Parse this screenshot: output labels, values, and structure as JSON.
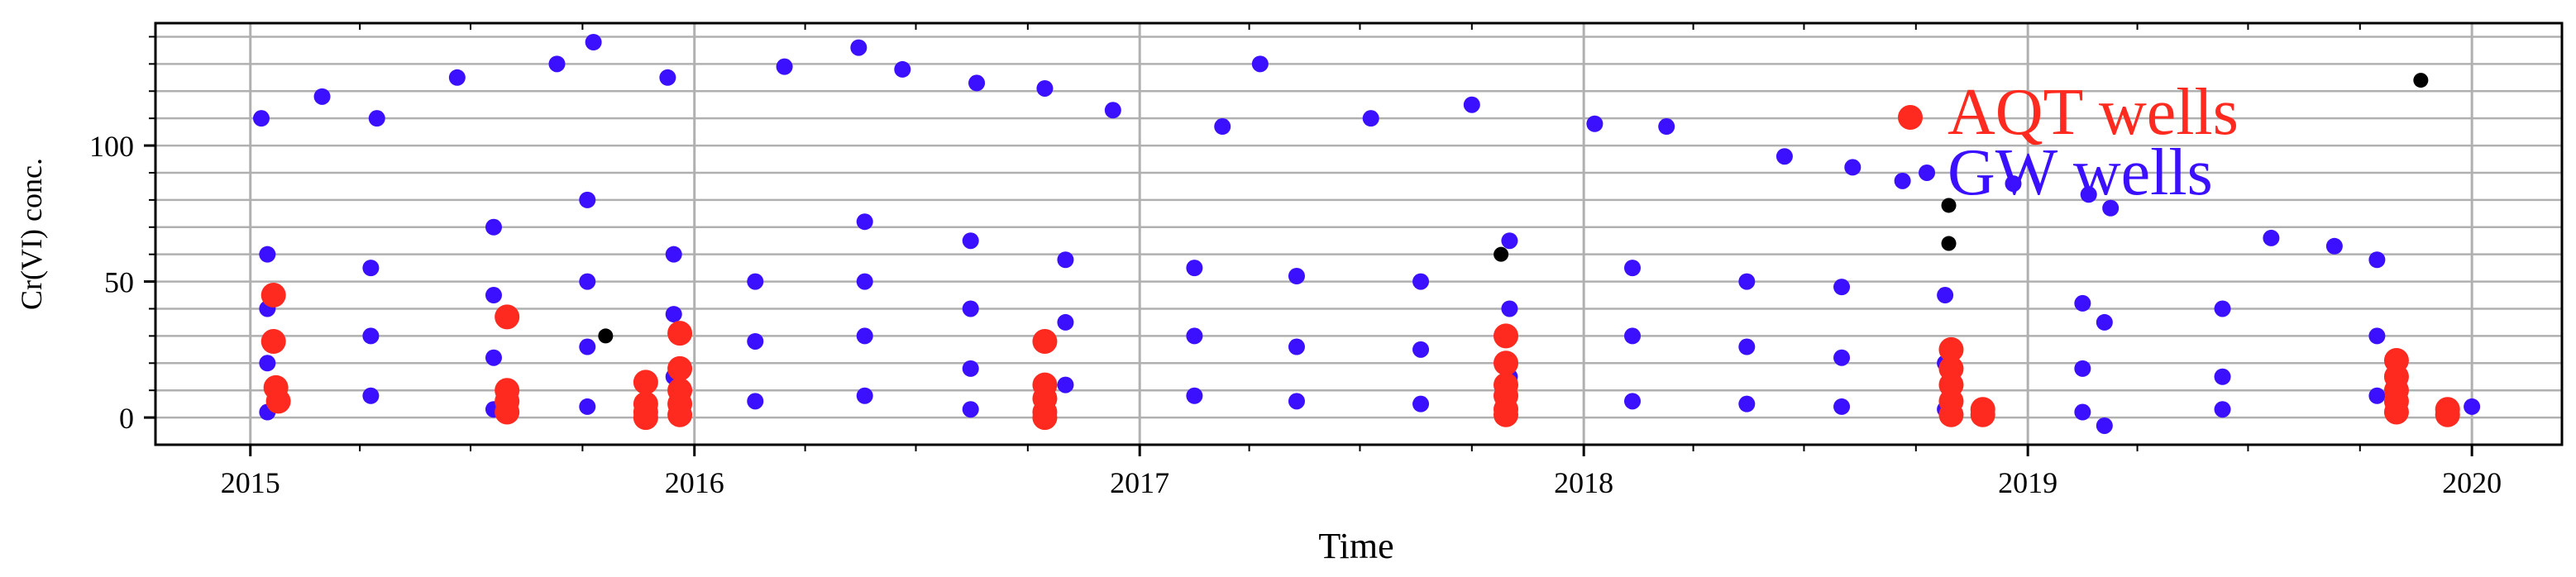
{
  "chart_data": {
    "type": "scatter",
    "title": "",
    "xlabel": "Time",
    "ylabel": "Cr(VI) conc.",
    "xlim": [
      "2014-10-15",
      "2020-03-15"
    ],
    "ylim": [
      -10,
      145
    ],
    "x_ticks": [
      "2015",
      "2016",
      "2017",
      "2018",
      "2019",
      "2020"
    ],
    "x_tick_dates": [
      "2015-01-01",
      "2016-01-01",
      "2017-01-01",
      "2018-01-01",
      "2019-01-01",
      "2020-01-01"
    ],
    "y_ticks": [
      0,
      50,
      100
    ],
    "y_minor_step": 10,
    "grid": true,
    "legend": {
      "placement": "top-right"
    },
    "colors": {
      "aqt": "#ff2a1f",
      "gw": "#3b0fff",
      "other": "#000000",
      "grid": "#b0b0b0",
      "axis": "#000000"
    },
    "series": [
      {
        "name": "AQT wells",
        "color": "#ff2a1f",
        "points": [
          [
            "2015-01-20",
            45
          ],
          [
            "2015-01-20",
            28
          ],
          [
            "2015-01-22",
            11
          ],
          [
            "2015-01-24",
            6
          ],
          [
            "2015-07-31",
            37
          ],
          [
            "2015-07-31",
            10
          ],
          [
            "2015-07-31",
            6
          ],
          [
            "2015-07-31",
            2
          ],
          [
            "2015-11-22",
            13
          ],
          [
            "2015-11-22",
            5
          ],
          [
            "2015-11-22",
            2
          ],
          [
            "2015-11-22",
            0
          ],
          [
            "2015-12-20",
            31
          ],
          [
            "2015-12-20",
            18
          ],
          [
            "2015-12-20",
            10
          ],
          [
            "2015-12-20",
            5
          ],
          [
            "2015-12-20",
            1
          ],
          [
            "2016-10-15",
            28
          ],
          [
            "2016-10-15",
            12
          ],
          [
            "2016-10-15",
            7
          ],
          [
            "2016-10-15",
            2
          ],
          [
            "2016-10-15",
            0
          ],
          [
            "2017-10-29",
            30
          ],
          [
            "2017-10-29",
            20
          ],
          [
            "2017-10-29",
            12
          ],
          [
            "2017-10-29",
            8
          ],
          [
            "2017-10-29",
            3
          ],
          [
            "2017-10-29",
            1
          ],
          [
            "2018-10-30",
            25
          ],
          [
            "2018-10-30",
            18
          ],
          [
            "2018-10-30",
            12
          ],
          [
            "2018-10-30",
            6
          ],
          [
            "2018-10-30",
            1
          ],
          [
            "2018-11-25",
            3
          ],
          [
            "2018-11-25",
            1
          ],
          [
            "2019-10-31",
            21
          ],
          [
            "2019-10-31",
            15
          ],
          [
            "2019-10-31",
            10
          ],
          [
            "2019-10-31",
            6
          ],
          [
            "2019-10-31",
            2
          ],
          [
            "2019-12-12",
            3
          ],
          [
            "2019-12-12",
            1
          ]
        ]
      },
      {
        "name": "GW wells",
        "color": "#3b0fff",
        "points": [
          [
            "2015-01-10",
            110
          ],
          [
            "2015-03-01",
            118
          ],
          [
            "2015-04-15",
            110
          ],
          [
            "2015-06-20",
            125
          ],
          [
            "2015-09-10",
            130
          ],
          [
            "2015-10-10",
            138
          ],
          [
            "2015-12-10",
            125
          ],
          [
            "2016-03-15",
            129
          ],
          [
            "2016-05-15",
            136
          ],
          [
            "2016-06-20",
            128
          ],
          [
            "2016-08-20",
            123
          ],
          [
            "2016-10-15",
            121
          ],
          [
            "2016-12-10",
            113
          ],
          [
            "2017-03-10",
            107
          ],
          [
            "2017-04-10",
            130
          ],
          [
            "2017-07-10",
            110
          ],
          [
            "2017-10-01",
            115
          ],
          [
            "2018-01-10",
            108
          ],
          [
            "2018-03-10",
            107
          ],
          [
            "2018-06-15",
            96
          ],
          [
            "2018-08-10",
            92
          ],
          [
            "2018-09-20",
            87
          ],
          [
            "2018-10-10",
            90
          ],
          [
            "2018-12-20",
            86
          ],
          [
            "2019-02-20",
            82
          ],
          [
            "2019-03-10",
            77
          ],
          [
            "2019-07-20",
            66
          ],
          [
            "2019-09-10",
            63
          ],
          [
            "2015-01-15",
            60
          ],
          [
            "2015-01-15",
            40
          ],
          [
            "2015-01-15",
            20
          ],
          [
            "2015-01-15",
            2
          ],
          [
            "2015-04-10",
            55
          ],
          [
            "2015-04-10",
            30
          ],
          [
            "2015-04-10",
            8
          ],
          [
            "2015-07-20",
            70
          ],
          [
            "2015-07-20",
            45
          ],
          [
            "2015-07-20",
            22
          ],
          [
            "2015-07-20",
            3
          ],
          [
            "2015-10-05",
            80
          ],
          [
            "2015-10-05",
            50
          ],
          [
            "2015-10-05",
            26
          ],
          [
            "2015-10-05",
            4
          ],
          [
            "2015-12-15",
            60
          ],
          [
            "2015-12-15",
            38
          ],
          [
            "2015-12-15",
            15
          ],
          [
            "2016-02-20",
            50
          ],
          [
            "2016-02-20",
            28
          ],
          [
            "2016-02-20",
            6
          ],
          [
            "2016-05-20",
            72
          ],
          [
            "2016-05-20",
            50
          ],
          [
            "2016-05-20",
            30
          ],
          [
            "2016-05-20",
            8
          ],
          [
            "2016-08-15",
            65
          ],
          [
            "2016-08-15",
            40
          ],
          [
            "2016-08-15",
            18
          ],
          [
            "2016-08-15",
            3
          ],
          [
            "2016-11-01",
            58
          ],
          [
            "2016-11-01",
            35
          ],
          [
            "2016-11-01",
            12
          ],
          [
            "2017-02-15",
            55
          ],
          [
            "2017-02-15",
            30
          ],
          [
            "2017-02-15",
            8
          ],
          [
            "2017-05-10",
            52
          ],
          [
            "2017-05-10",
            26
          ],
          [
            "2017-05-10",
            6
          ],
          [
            "2017-08-20",
            50
          ],
          [
            "2017-08-20",
            25
          ],
          [
            "2017-08-20",
            5
          ],
          [
            "2017-11-01",
            65
          ],
          [
            "2017-11-01",
            40
          ],
          [
            "2017-11-01",
            15
          ],
          [
            "2018-02-10",
            55
          ],
          [
            "2018-02-10",
            30
          ],
          [
            "2018-02-10",
            6
          ],
          [
            "2018-05-15",
            50
          ],
          [
            "2018-05-15",
            26
          ],
          [
            "2018-05-15",
            5
          ],
          [
            "2018-08-01",
            48
          ],
          [
            "2018-08-01",
            22
          ],
          [
            "2018-08-01",
            4
          ],
          [
            "2018-10-25",
            45
          ],
          [
            "2018-10-25",
            20
          ],
          [
            "2018-10-25",
            3
          ],
          [
            "2019-02-15",
            42
          ],
          [
            "2019-02-15",
            18
          ],
          [
            "2019-02-15",
            2
          ],
          [
            "2019-03-05",
            35
          ],
          [
            "2019-03-05",
            -3
          ],
          [
            "2019-06-10",
            40
          ],
          [
            "2019-06-10",
            15
          ],
          [
            "2019-06-10",
            3
          ],
          [
            "2019-10-15",
            58
          ],
          [
            "2019-10-15",
            30
          ],
          [
            "2019-10-15",
            8
          ],
          [
            "2020-01-01",
            4
          ]
        ]
      },
      {
        "color": "#000000",
        "points": [
          [
            "2015-10-20",
            30
          ],
          [
            "2017-10-25",
            60
          ],
          [
            "2018-10-28",
            78
          ],
          [
            "2018-10-28",
            64
          ],
          [
            "2019-11-20",
            124
          ]
        ]
      }
    ]
  }
}
